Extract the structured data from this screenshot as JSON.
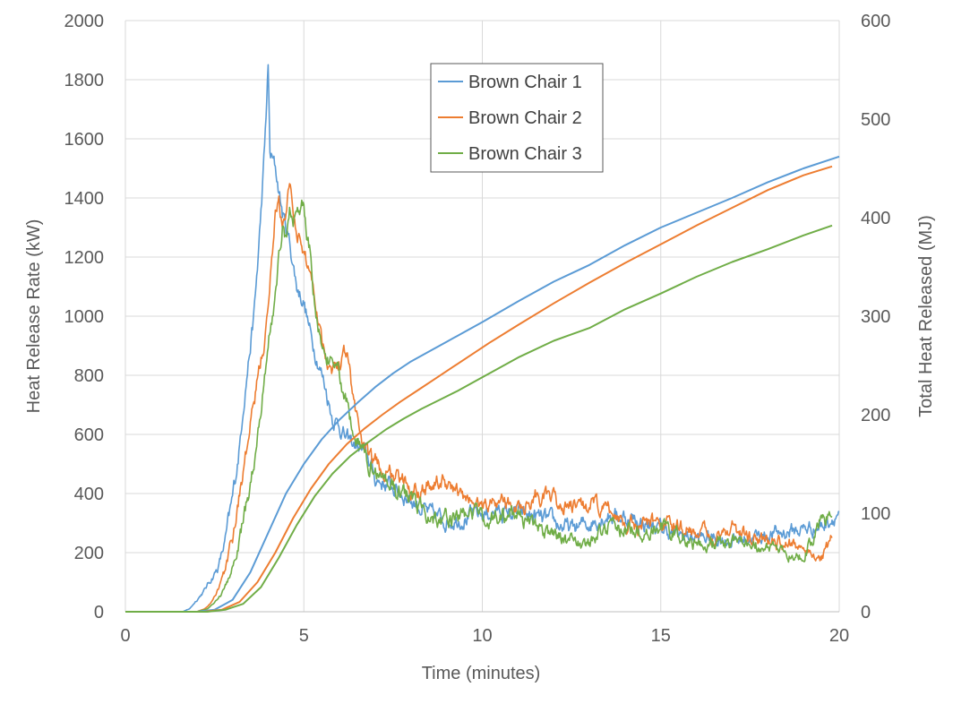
{
  "chart_data": {
    "type": "line",
    "title": "",
    "xlabel": "Time (minutes)",
    "ylabel_left": "Heat Release Rate (kW)",
    "ylabel_right": "Total Heat Released (MJ)",
    "xlim": [
      0,
      20
    ],
    "ylim_left": [
      0,
      2000
    ],
    "ylim_right": [
      0,
      600
    ],
    "x_ticks": [
      "0",
      "5",
      "10",
      "15",
      "20"
    ],
    "y_left_ticks": [
      "0",
      "200",
      "400",
      "600",
      "800",
      "1000",
      "1200",
      "1400",
      "1600",
      "1800",
      "2000"
    ],
    "y_right_ticks": [
      "0",
      "100",
      "200",
      "300",
      "400",
      "500",
      "600"
    ],
    "grid": true,
    "legend_position": "top-center",
    "colors": {
      "chair1": "#5b9bd5",
      "chair2": "#ed7d31",
      "chair3": "#70ad47"
    },
    "series": [
      {
        "name": "Brown Chair 1",
        "color": "#5b9bd5",
        "hrr_axis": "left",
        "hrr": [
          [
            0,
            0
          ],
          [
            1.6,
            0
          ],
          [
            1.8,
            10
          ],
          [
            2.0,
            40
          ],
          [
            2.2,
            70
          ],
          [
            2.4,
            110
          ],
          [
            2.6,
            150
          ],
          [
            2.8,
            240
          ],
          [
            3.0,
            380
          ],
          [
            3.1,
            470
          ],
          [
            3.2,
            560
          ],
          [
            3.3,
            700
          ],
          [
            3.4,
            800
          ],
          [
            3.5,
            900
          ],
          [
            3.6,
            1000
          ],
          [
            3.7,
            1160
          ],
          [
            3.8,
            1350
          ],
          [
            3.9,
            1560
          ],
          [
            4.0,
            1840
          ],
          [
            4.05,
            1550
          ],
          [
            4.2,
            1500
          ],
          [
            4.4,
            1350
          ],
          [
            4.6,
            1250
          ],
          [
            4.8,
            1100
          ],
          [
            5.0,
            1050
          ],
          [
            5.2,
            930
          ],
          [
            5.4,
            850
          ],
          [
            5.6,
            760
          ],
          [
            5.8,
            660
          ],
          [
            6.0,
            630
          ],
          [
            6.2,
            580
          ],
          [
            6.5,
            560
          ],
          [
            6.8,
            520
          ],
          [
            7.0,
            450
          ],
          [
            7.5,
            420
          ],
          [
            8.0,
            380
          ],
          [
            8.5,
            330
          ],
          [
            9.0,
            310
          ],
          [
            9.5,
            320
          ],
          [
            10.0,
            330
          ],
          [
            10.5,
            340
          ],
          [
            11.0,
            330
          ],
          [
            11.5,
            320
          ],
          [
            12.0,
            300
          ],
          [
            12.5,
            280
          ],
          [
            13.0,
            300
          ],
          [
            13.5,
            330
          ],
          [
            14.0,
            320
          ],
          [
            14.5,
            300
          ],
          [
            15.0,
            280
          ],
          [
            15.5,
            260
          ],
          [
            16.0,
            250
          ],
          [
            16.5,
            250
          ],
          [
            17.0,
            240
          ],
          [
            17.5,
            250
          ],
          [
            18.0,
            260
          ],
          [
            18.5,
            270
          ],
          [
            19.0,
            280
          ],
          [
            19.5,
            290
          ],
          [
            20.0,
            340
          ]
        ],
        "thr_axis": "right",
        "thr": [
          [
            0,
            0
          ],
          [
            2.0,
            0
          ],
          [
            2.5,
            2
          ],
          [
            3.0,
            12
          ],
          [
            3.5,
            40
          ],
          [
            4.0,
            80
          ],
          [
            4.5,
            120
          ],
          [
            5.0,
            150
          ],
          [
            5.5,
            175
          ],
          [
            6.0,
            195
          ],
          [
            6.5,
            212
          ],
          [
            7.0,
            228
          ],
          [
            7.5,
            242
          ],
          [
            8.0,
            254
          ],
          [
            8.5,
            264
          ],
          [
            9.0,
            274
          ],
          [
            9.5,
            284
          ],
          [
            10.0,
            294
          ],
          [
            11.0,
            315
          ],
          [
            12.0,
            335
          ],
          [
            13.0,
            352
          ],
          [
            14.0,
            372
          ],
          [
            15.0,
            390
          ],
          [
            16.0,
            405
          ],
          [
            17.0,
            420
          ],
          [
            18.0,
            436
          ],
          [
            19.0,
            450
          ],
          [
            20.0,
            462
          ]
        ]
      },
      {
        "name": "Brown Chair 2",
        "color": "#ed7d31",
        "hrr_axis": "left",
        "hrr": [
          [
            0,
            0
          ],
          [
            2.0,
            0
          ],
          [
            2.2,
            10
          ],
          [
            2.4,
            30
          ],
          [
            2.6,
            80
          ],
          [
            2.8,
            140
          ],
          [
            3.0,
            250
          ],
          [
            3.2,
            400
          ],
          [
            3.4,
            550
          ],
          [
            3.6,
            700
          ],
          [
            3.8,
            850
          ],
          [
            4.0,
            1000
          ],
          [
            4.1,
            1200
          ],
          [
            4.2,
            1350
          ],
          [
            4.3,
            1400
          ],
          [
            4.4,
            1300
          ],
          [
            4.5,
            1320
          ],
          [
            4.6,
            1470
          ],
          [
            4.7,
            1350
          ],
          [
            4.8,
            1300
          ],
          [
            5.0,
            1200
          ],
          [
            5.2,
            1150
          ],
          [
            5.4,
            1000
          ],
          [
            5.6,
            870
          ],
          [
            5.8,
            830
          ],
          [
            6.0,
            840
          ],
          [
            6.2,
            900
          ],
          [
            6.4,
            700
          ],
          [
            6.6,
            600
          ],
          [
            6.8,
            520
          ],
          [
            7.0,
            500
          ],
          [
            7.5,
            460
          ],
          [
            8.0,
            420
          ],
          [
            8.5,
            430
          ],
          [
            9.0,
            440
          ],
          [
            9.5,
            380
          ],
          [
            10.0,
            360
          ],
          [
            10.5,
            380
          ],
          [
            11.0,
            350
          ],
          [
            11.5,
            400
          ],
          [
            12.0,
            370
          ],
          [
            12.5,
            350
          ],
          [
            13.0,
            360
          ],
          [
            13.5,
            340
          ],
          [
            14.0,
            310
          ],
          [
            14.5,
            290
          ],
          [
            15.0,
            310
          ],
          [
            15.5,
            280
          ],
          [
            16.0,
            270
          ],
          [
            16.5,
            260
          ],
          [
            17.0,
            290
          ],
          [
            17.5,
            250
          ],
          [
            18.0,
            240
          ],
          [
            18.5,
            230
          ],
          [
            19.0,
            220
          ],
          [
            19.5,
            180
          ],
          [
            19.8,
            250
          ]
        ],
        "thr_axis": "right",
        "thr": [
          [
            0,
            0
          ],
          [
            2.2,
            0
          ],
          [
            2.7,
            2
          ],
          [
            3.2,
            10
          ],
          [
            3.7,
            30
          ],
          [
            4.2,
            60
          ],
          [
            4.7,
            95
          ],
          [
            5.2,
            125
          ],
          [
            5.7,
            150
          ],
          [
            6.2,
            170
          ],
          [
            6.7,
            186
          ],
          [
            7.2,
            200
          ],
          [
            7.7,
            213
          ],
          [
            8.2,
            225
          ],
          [
            8.7,
            237
          ],
          [
            9.2,
            249
          ],
          [
            9.7,
            261
          ],
          [
            10.2,
            273
          ],
          [
            11.0,
            291
          ],
          [
            12.0,
            313
          ],
          [
            13.0,
            334
          ],
          [
            14.0,
            354
          ],
          [
            15.0,
            373
          ],
          [
            16.0,
            392
          ],
          [
            17.0,
            410
          ],
          [
            18.0,
            428
          ],
          [
            19.0,
            443
          ],
          [
            19.8,
            452
          ]
        ]
      },
      {
        "name": "Brown Chair 3",
        "color": "#70ad47",
        "hrr_axis": "left",
        "hrr": [
          [
            0,
            0
          ],
          [
            2.0,
            0
          ],
          [
            2.3,
            10
          ],
          [
            2.5,
            30
          ],
          [
            2.7,
            60
          ],
          [
            2.9,
            110
          ],
          [
            3.1,
            190
          ],
          [
            3.3,
            300
          ],
          [
            3.5,
            420
          ],
          [
            3.7,
            600
          ],
          [
            3.9,
            800
          ],
          [
            4.0,
            920
          ],
          [
            4.1,
            980
          ],
          [
            4.2,
            1070
          ],
          [
            4.3,
            1200
          ],
          [
            4.4,
            1300
          ],
          [
            4.5,
            1250
          ],
          [
            4.6,
            1350
          ],
          [
            4.7,
            1320
          ],
          [
            4.8,
            1390
          ],
          [
            4.9,
            1350
          ],
          [
            5.0,
            1380
          ],
          [
            5.1,
            1250
          ],
          [
            5.2,
            1200
          ],
          [
            5.3,
            1050
          ],
          [
            5.4,
            980
          ],
          [
            5.5,
            880
          ],
          [
            5.6,
            830
          ],
          [
            5.8,
            860
          ],
          [
            6.0,
            800
          ],
          [
            6.2,
            700
          ],
          [
            6.4,
            600
          ],
          [
            6.6,
            550
          ],
          [
            6.8,
            500
          ],
          [
            7.0,
            480
          ],
          [
            7.5,
            420
          ],
          [
            8.0,
            380
          ],
          [
            8.5,
            330
          ],
          [
            9.0,
            310
          ],
          [
            9.5,
            330
          ],
          [
            10.0,
            320
          ],
          [
            10.5,
            330
          ],
          [
            11.0,
            320
          ],
          [
            11.5,
            280
          ],
          [
            12.0,
            260
          ],
          [
            12.5,
            240
          ],
          [
            13.0,
            230
          ],
          [
            13.5,
            290
          ],
          [
            14.0,
            280
          ],
          [
            14.5,
            260
          ],
          [
            15.0,
            290
          ],
          [
            15.5,
            260
          ],
          [
            16.0,
            230
          ],
          [
            16.5,
            240
          ],
          [
            17.0,
            230
          ],
          [
            17.5,
            230
          ],
          [
            18.0,
            210
          ],
          [
            18.5,
            200
          ],
          [
            19.0,
            190
          ],
          [
            19.5,
            310
          ],
          [
            19.8,
            320
          ]
        ],
        "thr_axis": "right",
        "thr": [
          [
            0,
            0
          ],
          [
            2.3,
            0
          ],
          [
            2.8,
            2
          ],
          [
            3.3,
            8
          ],
          [
            3.8,
            25
          ],
          [
            4.3,
            55
          ],
          [
            4.8,
            88
          ],
          [
            5.3,
            117
          ],
          [
            5.8,
            140
          ],
          [
            6.3,
            158
          ],
          [
            6.8,
            172
          ],
          [
            7.3,
            185
          ],
          [
            7.8,
            196
          ],
          [
            8.3,
            206
          ],
          [
            8.8,
            215
          ],
          [
            9.3,
            224
          ],
          [
            9.8,
            234
          ],
          [
            10.3,
            244
          ],
          [
            11.0,
            258
          ],
          [
            12.0,
            275
          ],
          [
            13.0,
            288
          ],
          [
            14.0,
            307
          ],
          [
            15.0,
            323
          ],
          [
            16.0,
            340
          ],
          [
            17.0,
            355
          ],
          [
            18.0,
            368
          ],
          [
            19.0,
            382
          ],
          [
            19.8,
            392
          ]
        ]
      }
    ]
  }
}
